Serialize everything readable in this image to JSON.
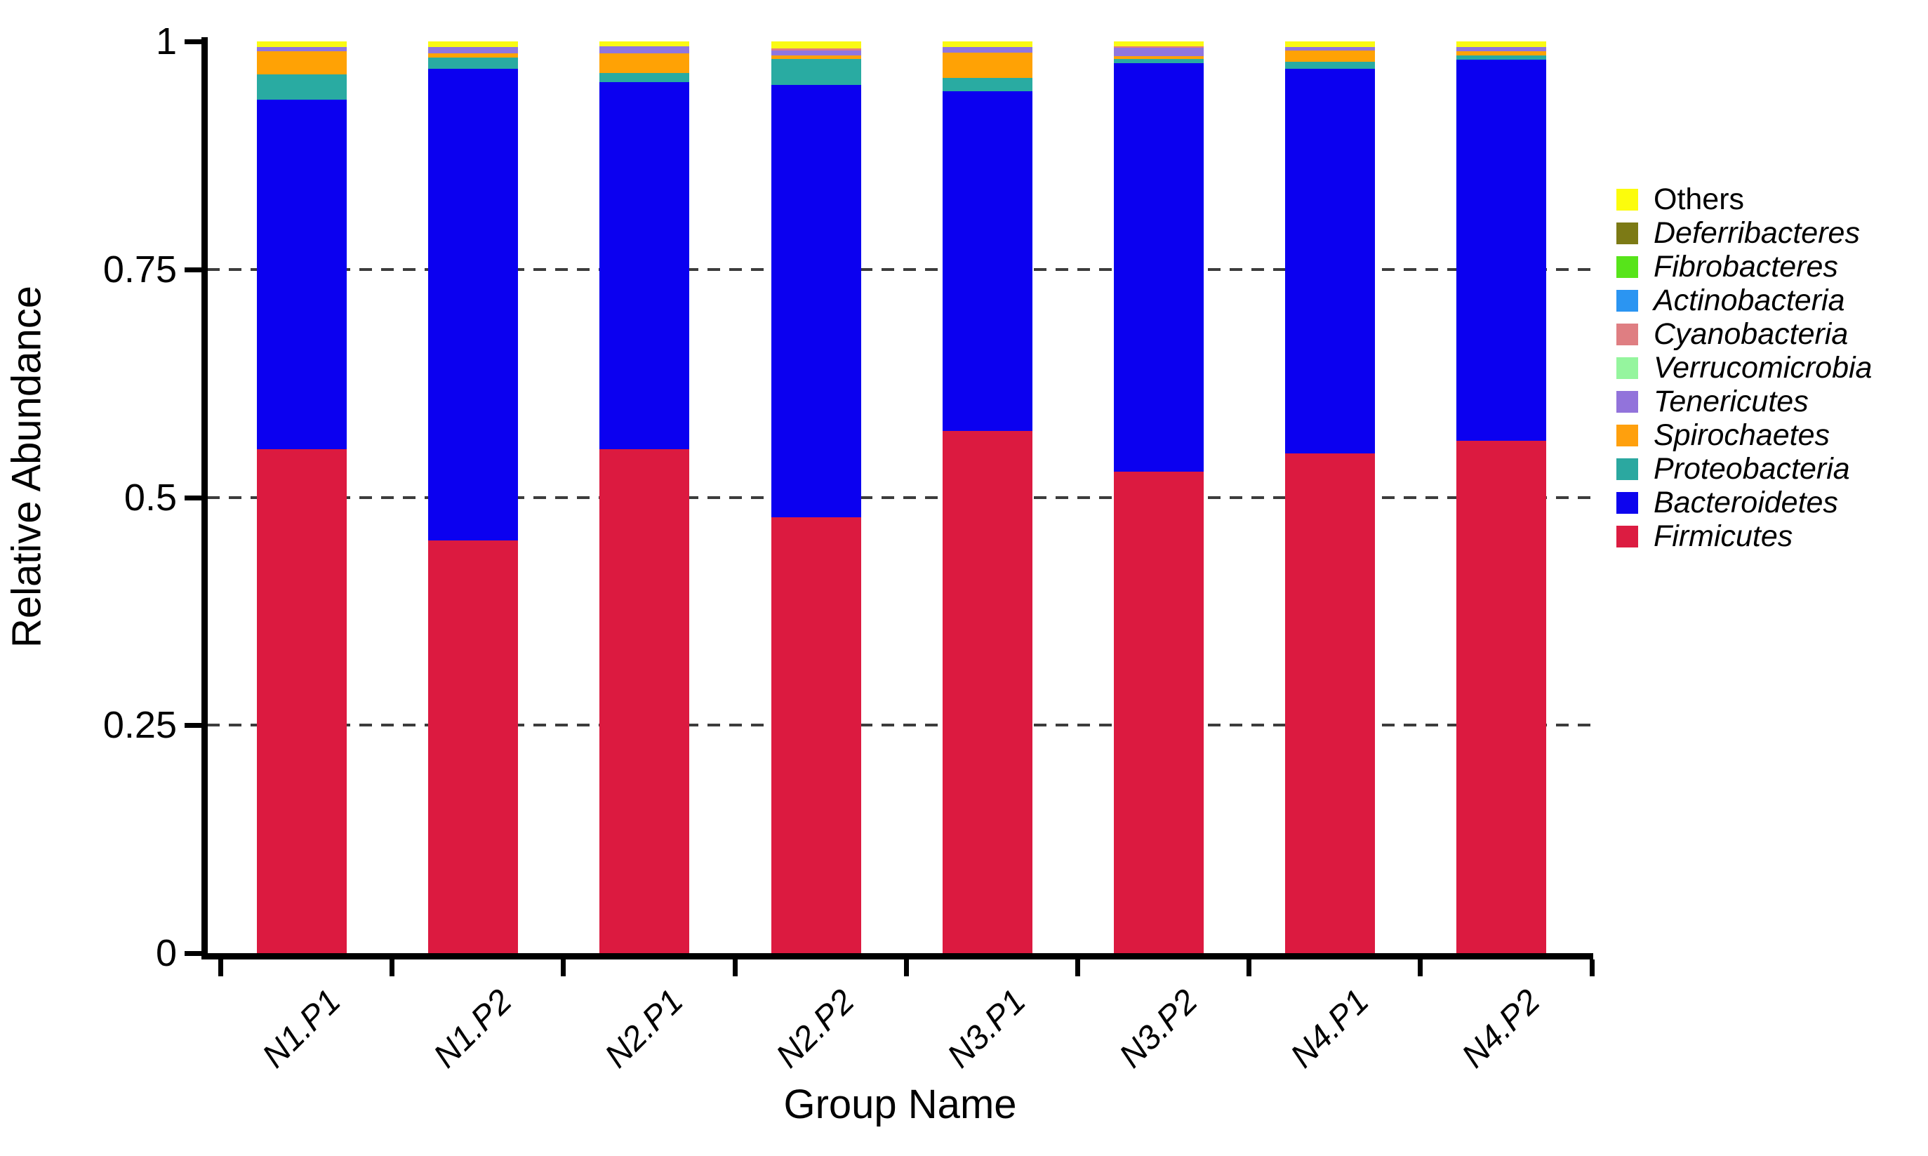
{
  "figure": {
    "y_axis_title": "Relative Abundance",
    "x_axis_title": "Group Name",
    "y_ticks": [
      {
        "label": "1",
        "value": 1
      },
      {
        "label": "0.75",
        "value": 0.75
      },
      {
        "label": "0.5",
        "value": 0.5
      },
      {
        "label": "0.25",
        "value": 0.25
      },
      {
        "label": "0",
        "value": 0
      }
    ],
    "gridline_values": [
      0.75,
      0.5,
      0.25
    ]
  },
  "legend": {
    "items": [
      {
        "label": "Others",
        "color": "#FCFC0C",
        "italic": false
      },
      {
        "label": "Deferribacteres",
        "color": "#7C7A15",
        "italic": true
      },
      {
        "label": "Fibrobacteres",
        "color": "#57E41A",
        "italic": true
      },
      {
        "label": "Actinobacteria",
        "color": "#2B95F2",
        "italic": true
      },
      {
        "label": "Cyanobacteria",
        "color": "#DF7E82",
        "italic": true
      },
      {
        "label": "Verrucomicrobia",
        "color": "#95F59E",
        "italic": true
      },
      {
        "label": "Tenericutes",
        "color": "#9273DB",
        "italic": true
      },
      {
        "label": "Spirochaetes",
        "color": "#FFA00D",
        "italic": true
      },
      {
        "label": "Proteobacteria",
        "color": "#2BA8A0",
        "italic": true
      },
      {
        "label": "Bacteroidetes",
        "color": "#0D04EE",
        "italic": true
      },
      {
        "label": "Firmicutes",
        "color": "#DC1C41",
        "italic": true
      }
    ]
  },
  "chart_data": {
    "type": "bar",
    "stacked": true,
    "title": "",
    "xlabel": "Group Name",
    "ylabel": "Relative Abundance",
    "ylim": [
      0,
      1
    ],
    "grid": "horizontal dashed lines at 0.25, 0.5, 0.75",
    "legend_position": "right",
    "categories": [
      "N1.P1",
      "N1.P2",
      "N2.P1",
      "N2.P2",
      "N3.P1",
      "N3.P2",
      "N4.P1",
      "N4.P2"
    ],
    "series": [
      {
        "name": "Firmicutes",
        "color": "#DC1A40",
        "values": [
          0.553,
          0.453,
          0.553,
          0.478,
          0.573,
          0.528,
          0.548,
          0.562
        ]
      },
      {
        "name": "Bacteroidetes",
        "color": "#0B00F0",
        "values": [
          0.383,
          0.517,
          0.402,
          0.474,
          0.372,
          0.448,
          0.422,
          0.418
        ]
      },
      {
        "name": "Proteobacteria",
        "color": "#29ABA2",
        "values": [
          0.028,
          0.012,
          0.01,
          0.029,
          0.015,
          0.005,
          0.008,
          0.005
        ]
      },
      {
        "name": "Spirochaetes",
        "color": "#FFA205",
        "values": [
          0.025,
          0.005,
          0.022,
          0.004,
          0.028,
          0.003,
          0.012,
          0.004
        ]
      },
      {
        "name": "Tenericutes",
        "color": "#8F76DF",
        "values": [
          0.005,
          0.007,
          0.008,
          0.005,
          0.006,
          0.009,
          0.004,
          0.005
        ]
      },
      {
        "name": "Cyanobacteria",
        "color": "#DF7E82",
        "values": [
          0,
          0,
          0,
          0.002,
          0,
          0.002,
          0,
          0
        ]
      },
      {
        "name": "Verrucomicrobia",
        "color": "#95F59E",
        "values": [
          0,
          0,
          0,
          0,
          0,
          0,
          0,
          0
        ]
      },
      {
        "name": "Actinobacteria",
        "color": "#2B95F2",
        "values": [
          0,
          0,
          0,
          0,
          0,
          0,
          0,
          0
        ]
      },
      {
        "name": "Fibrobacteres",
        "color": "#57E41A",
        "values": [
          0,
          0,
          0,
          0,
          0,
          0,
          0,
          0
        ]
      },
      {
        "name": "Deferribacteres",
        "color": "#7C7A15",
        "values": [
          0,
          0,
          0,
          0,
          0,
          0,
          0,
          0
        ]
      },
      {
        "name": "Others",
        "color": "#FAFA14",
        "values": [
          0.006,
          0.006,
          0.005,
          0.008,
          0.006,
          0.005,
          0.006,
          0.006
        ]
      }
    ]
  }
}
